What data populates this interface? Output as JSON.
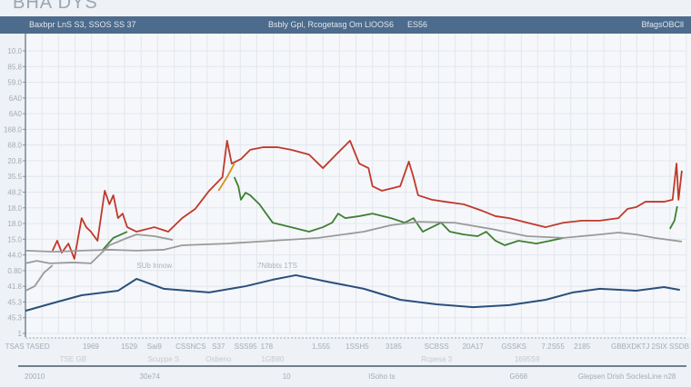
{
  "title": "BHA DYS",
  "header": {
    "left": "Baxbpr LnS S3, SSOS SS 37",
    "center": "Bsbly Gpl, Rcogetasg Om LlOOS6",
    "center_value": "ES56",
    "right": "BfagsOBCll"
  },
  "colors": {
    "red": "#c0392b",
    "green": "#3f7f35",
    "orange": "#d4901a",
    "gray": "#9a9a9a",
    "blue": "#2c4f7c",
    "header": "#4d6b8c"
  },
  "chart_data": {
    "type": "line",
    "title": "",
    "xlim": [
      0,
      100
    ],
    "ylim": [
      0,
      100
    ],
    "grid": true,
    "y_tick_labels": [
      "10.0",
      "85.8",
      "59.0",
      "6A0",
      "6A0",
      "168.0",
      "68.0",
      "20.8",
      "35.5",
      "48.2",
      "18.0",
      "18.0",
      "15.0",
      "44.0",
      "0.80",
      "41.8",
      "45.3",
      "45.3",
      "1"
    ],
    "x_tick_labels": [
      {
        "text": "TSAS TASED",
        "x": 0.3
      },
      {
        "text": "1969",
        "x": 9.9
      },
      {
        "text": "1529",
        "x": 15.7
      },
      {
        "text": "Sai9",
        "x": 19.5
      },
      {
        "text": "CSSNCS",
        "x": 25
      },
      {
        "text": "S37",
        "x": 29.2
      },
      {
        "text": "SSS95",
        "x": 33.3
      },
      {
        "text": "178",
        "x": 36.5
      },
      {
        "text": "1,555",
        "x": 44.7
      },
      {
        "text": "1SSH5",
        "x": 50.2
      },
      {
        "text": "3185",
        "x": 55.7
      },
      {
        "text": "SCBSS",
        "x": 62.2
      },
      {
        "text": "20A17",
        "x": 67.7
      },
      {
        "text": "GSSKS",
        "x": 73.9
      },
      {
        "text": "7.2S55",
        "x": 79.8
      },
      {
        "text": "2185",
        "x": 84.2
      },
      {
        "text": "GBBXDKTJ 2SIX SSDB",
        "x": 94.5
      }
    ],
    "x_sub_labels": [
      {
        "text": "TSE GB",
        "x": 7.2
      },
      {
        "text": "Scuppe S",
        "x": 20.9
      },
      {
        "text": "Osbeno",
        "x": 29.2
      },
      {
        "text": "1GB80",
        "x": 37.4
      },
      {
        "text": "Rcpesa 3",
        "x": 62.2
      },
      {
        "text": "1695S9",
        "x": 75.9
      }
    ],
    "bottom_labels": [
      {
        "text": "20010",
        "x": 1.4
      },
      {
        "text": "30e74",
        "x": 18.8
      },
      {
        "text": "10",
        "x": 39.5
      },
      {
        "text": "ISoho ts",
        "x": 53.9
      },
      {
        "text": "G668",
        "x": 74.6
      },
      {
        "text": "Glepsen Drish SoclesLine n28",
        "x": 91
      }
    ],
    "annotations": [
      {
        "text": "SUb lnnow",
        "x": 19.5,
        "y": 24.1
      },
      {
        "text": "7Nlbbts 1TS",
        "x": 38.1,
        "y": 24.1
      }
    ],
    "series": [
      {
        "color": "red",
        "points": [
          [
            4.1,
            29.3
          ],
          [
            4.8,
            32.8
          ],
          [
            5.5,
            28.6
          ],
          [
            6.5,
            31.8
          ],
          [
            7.4,
            26.4
          ],
          [
            8.5,
            40.8
          ],
          [
            9.2,
            37.6
          ],
          [
            9.9,
            36.0
          ],
          [
            10.9,
            32.8
          ],
          [
            12.0,
            50.5
          ],
          [
            12.7,
            45.7
          ],
          [
            13.3,
            48.9
          ],
          [
            14.0,
            40.8
          ],
          [
            14.7,
            42.4
          ],
          [
            15.4,
            37.6
          ],
          [
            16.8,
            36.0
          ],
          [
            19.5,
            37.6
          ],
          [
            21.6,
            36.0
          ],
          [
            23.7,
            40.8
          ],
          [
            25.7,
            44.1
          ],
          [
            27.8,
            50.5
          ],
          [
            29.8,
            55.3
          ],
          [
            30.5,
            68.2
          ],
          [
            31.2,
            60.1
          ],
          [
            32.6,
            61.7
          ],
          [
            34.0,
            65.0
          ],
          [
            36.0,
            65.9
          ],
          [
            38.1,
            65.9
          ],
          [
            40.2,
            65.0
          ],
          [
            42.9,
            63.3
          ],
          [
            45.0,
            58.5
          ],
          [
            47.0,
            63.3
          ],
          [
            49.1,
            68.2
          ],
          [
            50.5,
            60.1
          ],
          [
            51.9,
            58.5
          ],
          [
            52.5,
            52.1
          ],
          [
            53.9,
            50.5
          ],
          [
            56.7,
            52.1
          ],
          [
            58.0,
            60.8
          ],
          [
            58.7,
            55.3
          ],
          [
            59.4,
            48.9
          ],
          [
            61.5,
            47.3
          ],
          [
            63.5,
            46.6
          ],
          [
            66.3,
            45.7
          ],
          [
            69.1,
            43.4
          ],
          [
            71.1,
            41.5
          ],
          [
            73.2,
            40.8
          ],
          [
            75.9,
            39.2
          ],
          [
            78.7,
            37.6
          ],
          [
            81.4,
            39.2
          ],
          [
            84.2,
            39.9
          ],
          [
            86.9,
            39.9
          ],
          [
            89.7,
            40.8
          ],
          [
            91.1,
            44.1
          ],
          [
            92.4,
            44.7
          ],
          [
            93.8,
            46.6
          ],
          [
            96.6,
            46.6
          ],
          [
            97.9,
            47.3
          ],
          [
            98.5,
            60.1
          ],
          [
            98.8,
            47.3
          ],
          [
            99.3,
            57.6
          ]
        ]
      },
      {
        "color": "green",
        "points": [
          [
            11.7,
            29.6
          ],
          [
            13.3,
            33.8
          ],
          [
            15.4,
            36.0
          ]
        ]
      },
      {
        "color": "green",
        "points": [
          [
            31.6,
            55.3
          ],
          [
            32.2,
            52.1
          ],
          [
            32.6,
            47.3
          ],
          [
            33.3,
            49.8
          ],
          [
            34.0,
            48.9
          ],
          [
            35.4,
            45.7
          ],
          [
            37.4,
            39.2
          ],
          [
            40.2,
            37.6
          ],
          [
            42.9,
            36.0
          ],
          [
            45.0,
            37.6
          ],
          [
            46.4,
            39.2
          ],
          [
            47.3,
            42.4
          ],
          [
            48.4,
            40.8
          ],
          [
            50.5,
            41.5
          ],
          [
            52.5,
            42.4
          ],
          [
            55.3,
            40.8
          ],
          [
            57.4,
            39.2
          ],
          [
            58.7,
            40.8
          ],
          [
            60.1,
            36.0
          ],
          [
            61.5,
            37.6
          ],
          [
            62.9,
            39.2
          ],
          [
            64.2,
            36.0
          ],
          [
            66.3,
            35.0
          ],
          [
            68.4,
            34.4
          ],
          [
            69.7,
            36.0
          ],
          [
            71.1,
            32.8
          ],
          [
            72.5,
            31.2
          ],
          [
            74.6,
            32.8
          ],
          [
            77.3,
            31.8
          ],
          [
            79.4,
            32.8
          ],
          [
            81.4,
            33.8
          ]
        ]
      },
      {
        "color": "green",
        "points": [
          [
            97.5,
            37
          ],
          [
            98.2,
            40
          ],
          [
            98.6,
            45
          ]
        ]
      },
      {
        "color": "orange",
        "points": [
          [
            29.2,
            50.5
          ],
          [
            30.5,
            55.3
          ],
          [
            31.6,
            60.1
          ]
        ]
      },
      {
        "color": "gray",
        "points": [
          [
            0,
            29.3
          ],
          [
            4.4,
            28.9
          ],
          [
            8.5,
            29.3
          ],
          [
            12.7,
            29.6
          ],
          [
            16.8,
            29.3
          ],
          [
            20.9,
            29.6
          ],
          [
            23.7,
            31.2
          ],
          [
            30.5,
            31.8
          ],
          [
            37.4,
            32.8
          ],
          [
            44.3,
            33.8
          ],
          [
            51.2,
            36.0
          ],
          [
            55.3,
            38.3
          ],
          [
            59.4,
            39.5
          ],
          [
            64.9,
            39.2
          ],
          [
            70.4,
            37.0
          ],
          [
            75.9,
            34.4
          ],
          [
            81.4,
            33.8
          ],
          [
            86.9,
            35.0
          ],
          [
            89.7,
            35.7
          ],
          [
            92.4,
            35.0
          ],
          [
            95.2,
            33.8
          ],
          [
            99.3,
            32.5
          ]
        ]
      },
      {
        "color": "gray",
        "points": [
          [
            0,
            24.8
          ],
          [
            1.7,
            25.7
          ],
          [
            3.7,
            24.8
          ],
          [
            7.2,
            25.1
          ],
          [
            9.9,
            24.8
          ],
          [
            12.7,
            31.2
          ],
          [
            15.4,
            33.8
          ],
          [
            16.8,
            35.0
          ],
          [
            19.5,
            34.4
          ],
          [
            22.3,
            33.1
          ]
        ]
      },
      {
        "color": "gray",
        "points": [
          [
            0,
            15.1
          ],
          [
            1.4,
            16.7
          ],
          [
            2.8,
            21.5
          ],
          [
            4.1,
            24.1
          ]
        ]
      },
      {
        "color": "blue",
        "points": [
          [
            0,
            8.0
          ],
          [
            4.4,
            10.9
          ],
          [
            8.5,
            13.5
          ],
          [
            14.0,
            15.1
          ],
          [
            16.8,
            19.3
          ],
          [
            20.9,
            15.8
          ],
          [
            27.8,
            14.5
          ],
          [
            33.3,
            16.7
          ],
          [
            37.4,
            19.0
          ],
          [
            40.9,
            20.6
          ],
          [
            45.7,
            18.3
          ],
          [
            51.2,
            15.8
          ],
          [
            56.7,
            11.9
          ],
          [
            62.2,
            10.3
          ],
          [
            67.7,
            9.3
          ],
          [
            73.2,
            10.0
          ],
          [
            78.7,
            11.9
          ],
          [
            82.8,
            14.5
          ],
          [
            86.9,
            15.8
          ],
          [
            92.4,
            15.1
          ],
          [
            96.6,
            16.4
          ],
          [
            99.0,
            15.4
          ]
        ]
      }
    ]
  }
}
